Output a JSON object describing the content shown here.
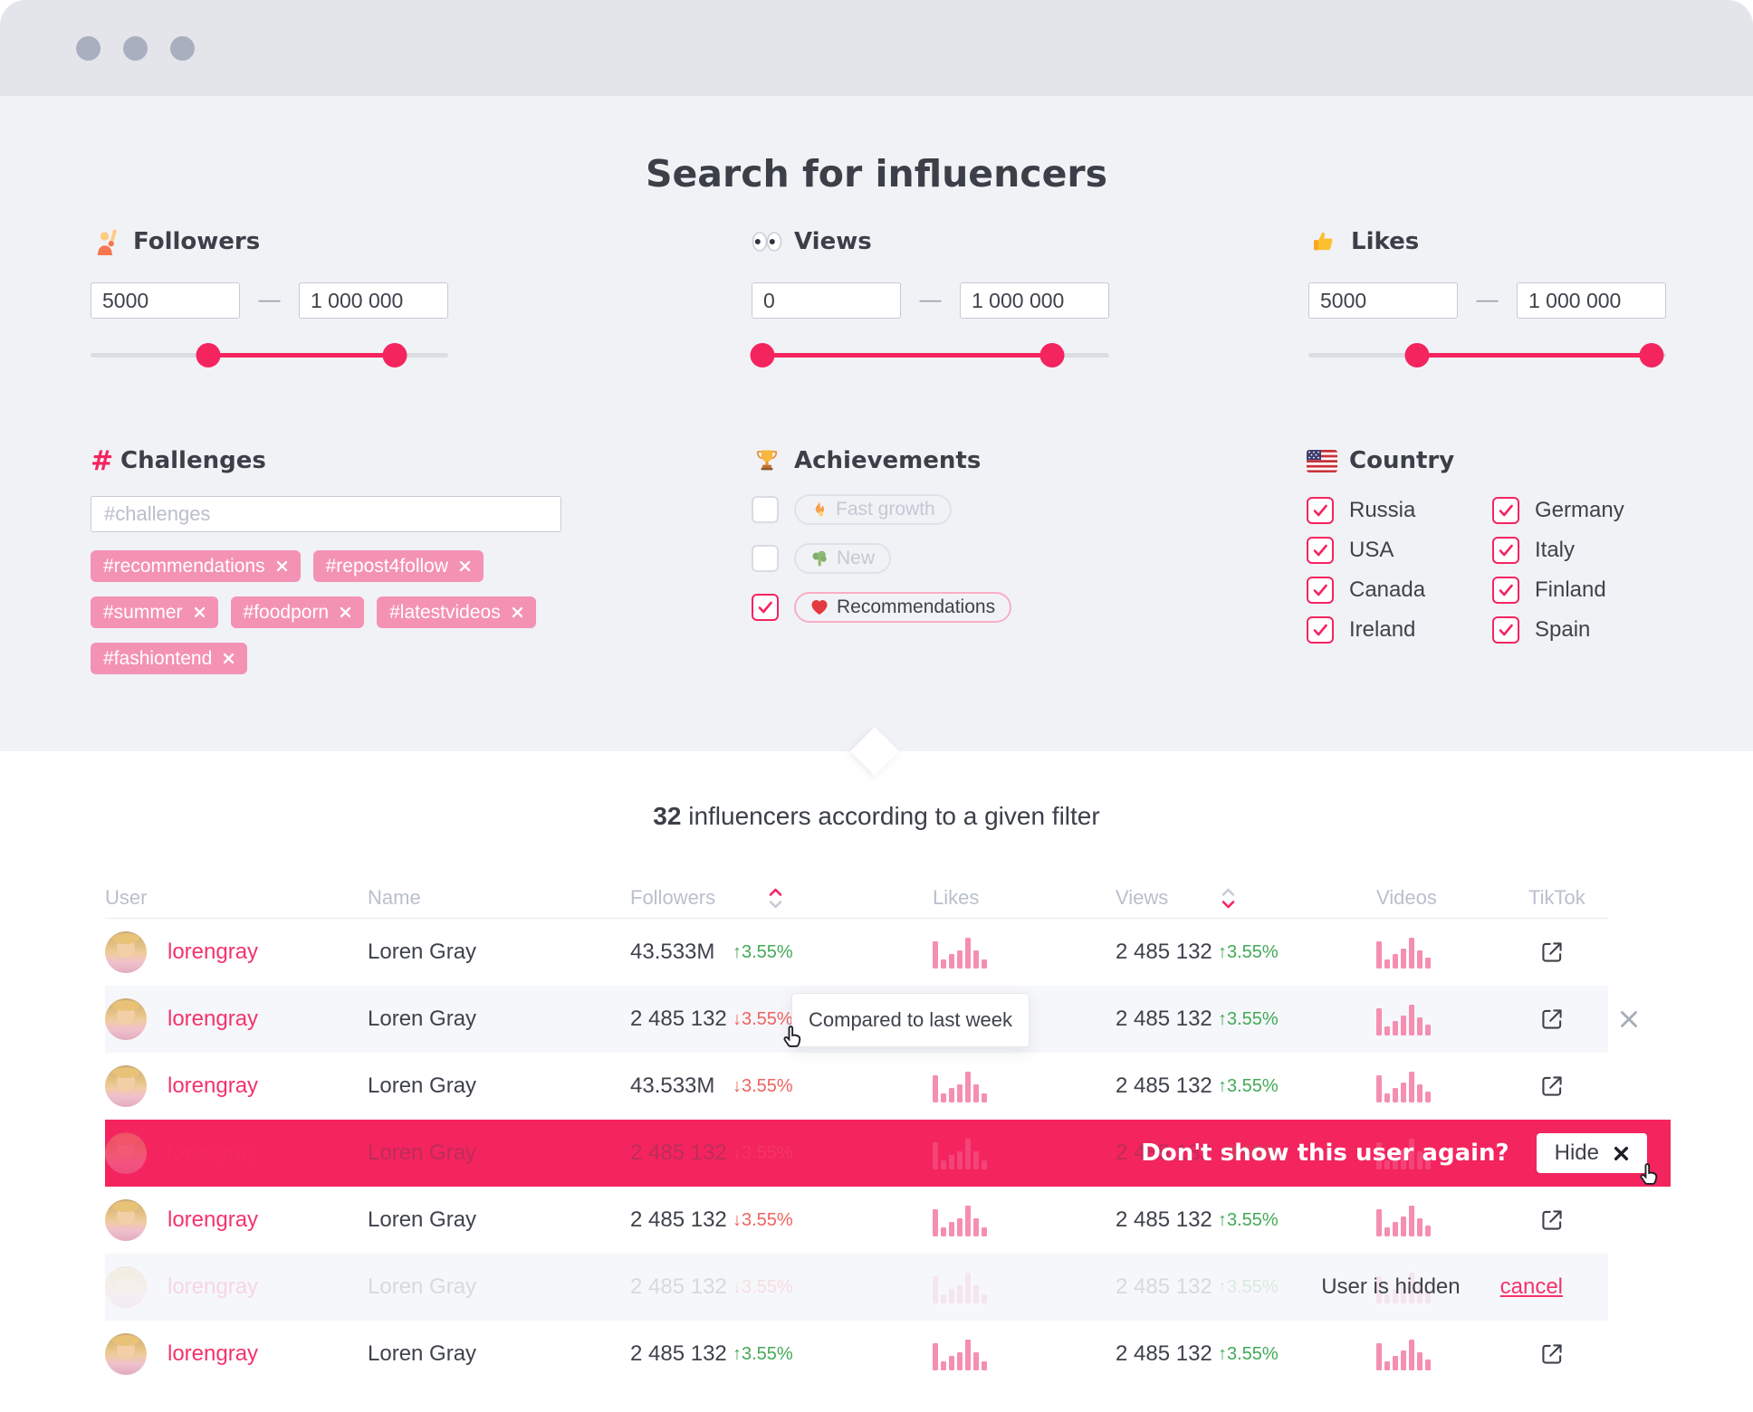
{
  "header": {
    "title": "Search for influencers"
  },
  "filters": {
    "followers": {
      "label": "Followers",
      "min": "5000",
      "max": "1 000 000",
      "dash": "—",
      "handles_pct": [
        33,
        85
      ]
    },
    "views": {
      "label": "Views",
      "min": "0",
      "max": "1 000 000",
      "dash": "—",
      "handles_pct": [
        3,
        84
      ]
    },
    "likes": {
      "label": "Likes",
      "min": "5000",
      "max": "1 000 000",
      "dash": "—",
      "handles_pct": [
        30.5,
        96
      ]
    },
    "challenges": {
      "label": "Challenges",
      "hash": "#",
      "placeholder": "#challenges",
      "tags": [
        "#recommendations",
        "#repost4follow",
        "#summer",
        "#foodporn",
        "#latestvideos",
        "#fashiontend"
      ]
    },
    "achievements": {
      "label": "Achievements",
      "options": [
        {
          "label": "Fast growth",
          "checked": false,
          "icon": "flame-icon"
        },
        {
          "label": "New",
          "checked": false,
          "icon": "broccoli-icon"
        },
        {
          "label": "Recommendations",
          "checked": true,
          "icon": "heart-icon"
        }
      ]
    },
    "country": {
      "label": "Country",
      "options": [
        {
          "label": "Russia",
          "checked": true
        },
        {
          "label": "USA",
          "checked": true
        },
        {
          "label": "Canada",
          "checked": true
        },
        {
          "label": "Ireland",
          "checked": true
        },
        {
          "label": "Germany",
          "checked": true
        },
        {
          "label": "Italy",
          "checked": true
        },
        {
          "label": "Finland",
          "checked": true
        },
        {
          "label": "Spain",
          "checked": true
        }
      ]
    }
  },
  "results": {
    "count": "32",
    "summary_suffix": " influencers according to a given filter",
    "columns": [
      {
        "label": "User"
      },
      {
        "label": "Name"
      },
      {
        "label": "Followers",
        "sort": "asc"
      },
      {
        "label": "Likes"
      },
      {
        "label": "Views",
        "sort": "desc"
      },
      {
        "label": "Videos"
      },
      {
        "label": "TikTok"
      }
    ],
    "tooltip": "Compared to last week",
    "highlight": {
      "prompt": "Don't show this user again?",
      "button": "Hide"
    },
    "hidden": {
      "message": "User is hidden",
      "action": "cancel"
    },
    "rows": [
      {
        "username": "lorengray",
        "name": "Loren Gray",
        "followers": "43.533M",
        "followers_change": "3.55%",
        "followers_direction": "up",
        "likes_spark": [
          30,
          10,
          16,
          20,
          34,
          20,
          10
        ],
        "views": "2 485 132",
        "views_change": "3.55%",
        "views_direction": "up",
        "videos_spark": [
          30,
          10,
          16,
          22,
          34,
          20,
          12
        ],
        "tiktok_link": true,
        "state": "normal"
      },
      {
        "username": "lorengray",
        "name": "Loren Gray",
        "followers": "2 485 132",
        "followers_change": "3.55%",
        "followers_direction": "down",
        "likes_spark": [
          30,
          10,
          16,
          20,
          34,
          20,
          10
        ],
        "views": "2 485 132",
        "views_change": "3.55%",
        "views_direction": "up",
        "videos_spark": [
          30,
          10,
          16,
          22,
          34,
          20,
          12
        ],
        "tiktok_link": true,
        "state": "tooltip"
      },
      {
        "username": "lorengray",
        "name": "Loren Gray",
        "followers": "43.533M",
        "followers_change": "3.55%",
        "followers_direction": "down",
        "likes_spark": [
          30,
          10,
          16,
          20,
          34,
          20,
          10
        ],
        "views": "2 485 132",
        "views_change": "3.55%",
        "views_direction": "up",
        "videos_spark": [
          30,
          10,
          16,
          22,
          34,
          20,
          12
        ],
        "tiktok_link": true,
        "state": "normal"
      },
      {
        "username": "lorengray",
        "name": "Loren Gray",
        "followers": "2 485 132",
        "followers_change": "3.55%",
        "followers_direction": "down",
        "likes_spark": [
          30,
          10,
          16,
          20,
          34,
          20,
          10
        ],
        "views": "2 485 132",
        "views_change": "3.55%",
        "views_direction": "up",
        "videos_spark": [
          30,
          10,
          16,
          22,
          34,
          20,
          12
        ],
        "tiktok_link": false,
        "state": "highlight"
      },
      {
        "username": "lorengray",
        "name": "Loren Gray",
        "followers": "2 485 132",
        "followers_change": "3.55%",
        "followers_direction": "down",
        "likes_spark": [
          30,
          10,
          16,
          20,
          34,
          20,
          10
        ],
        "views": "2 485 132",
        "views_change": "3.55%",
        "views_direction": "up",
        "videos_spark": [
          30,
          10,
          16,
          22,
          34,
          20,
          12
        ],
        "tiktok_link": true,
        "state": "normal"
      },
      {
        "username": "lorengray",
        "name": "Loren Gray",
        "followers": "2 485 132",
        "followers_change": "3.55%",
        "followers_direction": "down",
        "likes_spark": [
          30,
          10,
          16,
          20,
          34,
          20,
          10
        ],
        "views": "2 485 132",
        "views_change": "3.55%",
        "views_direction": "up",
        "videos_spark": [
          30,
          10,
          16,
          22,
          34,
          20,
          12
        ],
        "tiktok_link": false,
        "state": "hidden"
      },
      {
        "username": "lorengray",
        "name": "Loren Gray",
        "followers": "2 485 132",
        "followers_change": "3.55%",
        "followers_direction": "up",
        "likes_spark": [
          30,
          10,
          16,
          20,
          34,
          20,
          10
        ],
        "views": "2 485 132",
        "views_change": "3.55%",
        "views_direction": "up",
        "videos_spark": [
          30,
          10,
          16,
          22,
          34,
          20,
          12
        ],
        "tiktok_link": true,
        "state": "normal"
      }
    ]
  },
  "colors": {
    "accent": "#F4245F",
    "tag_pink": "#F492B3",
    "spark_pink": "#F48FB1",
    "positive_green": "#43A957",
    "negative_red": "#F0625F",
    "link_pink": "#F4336B",
    "panel_gray": "#F1F2F6"
  }
}
